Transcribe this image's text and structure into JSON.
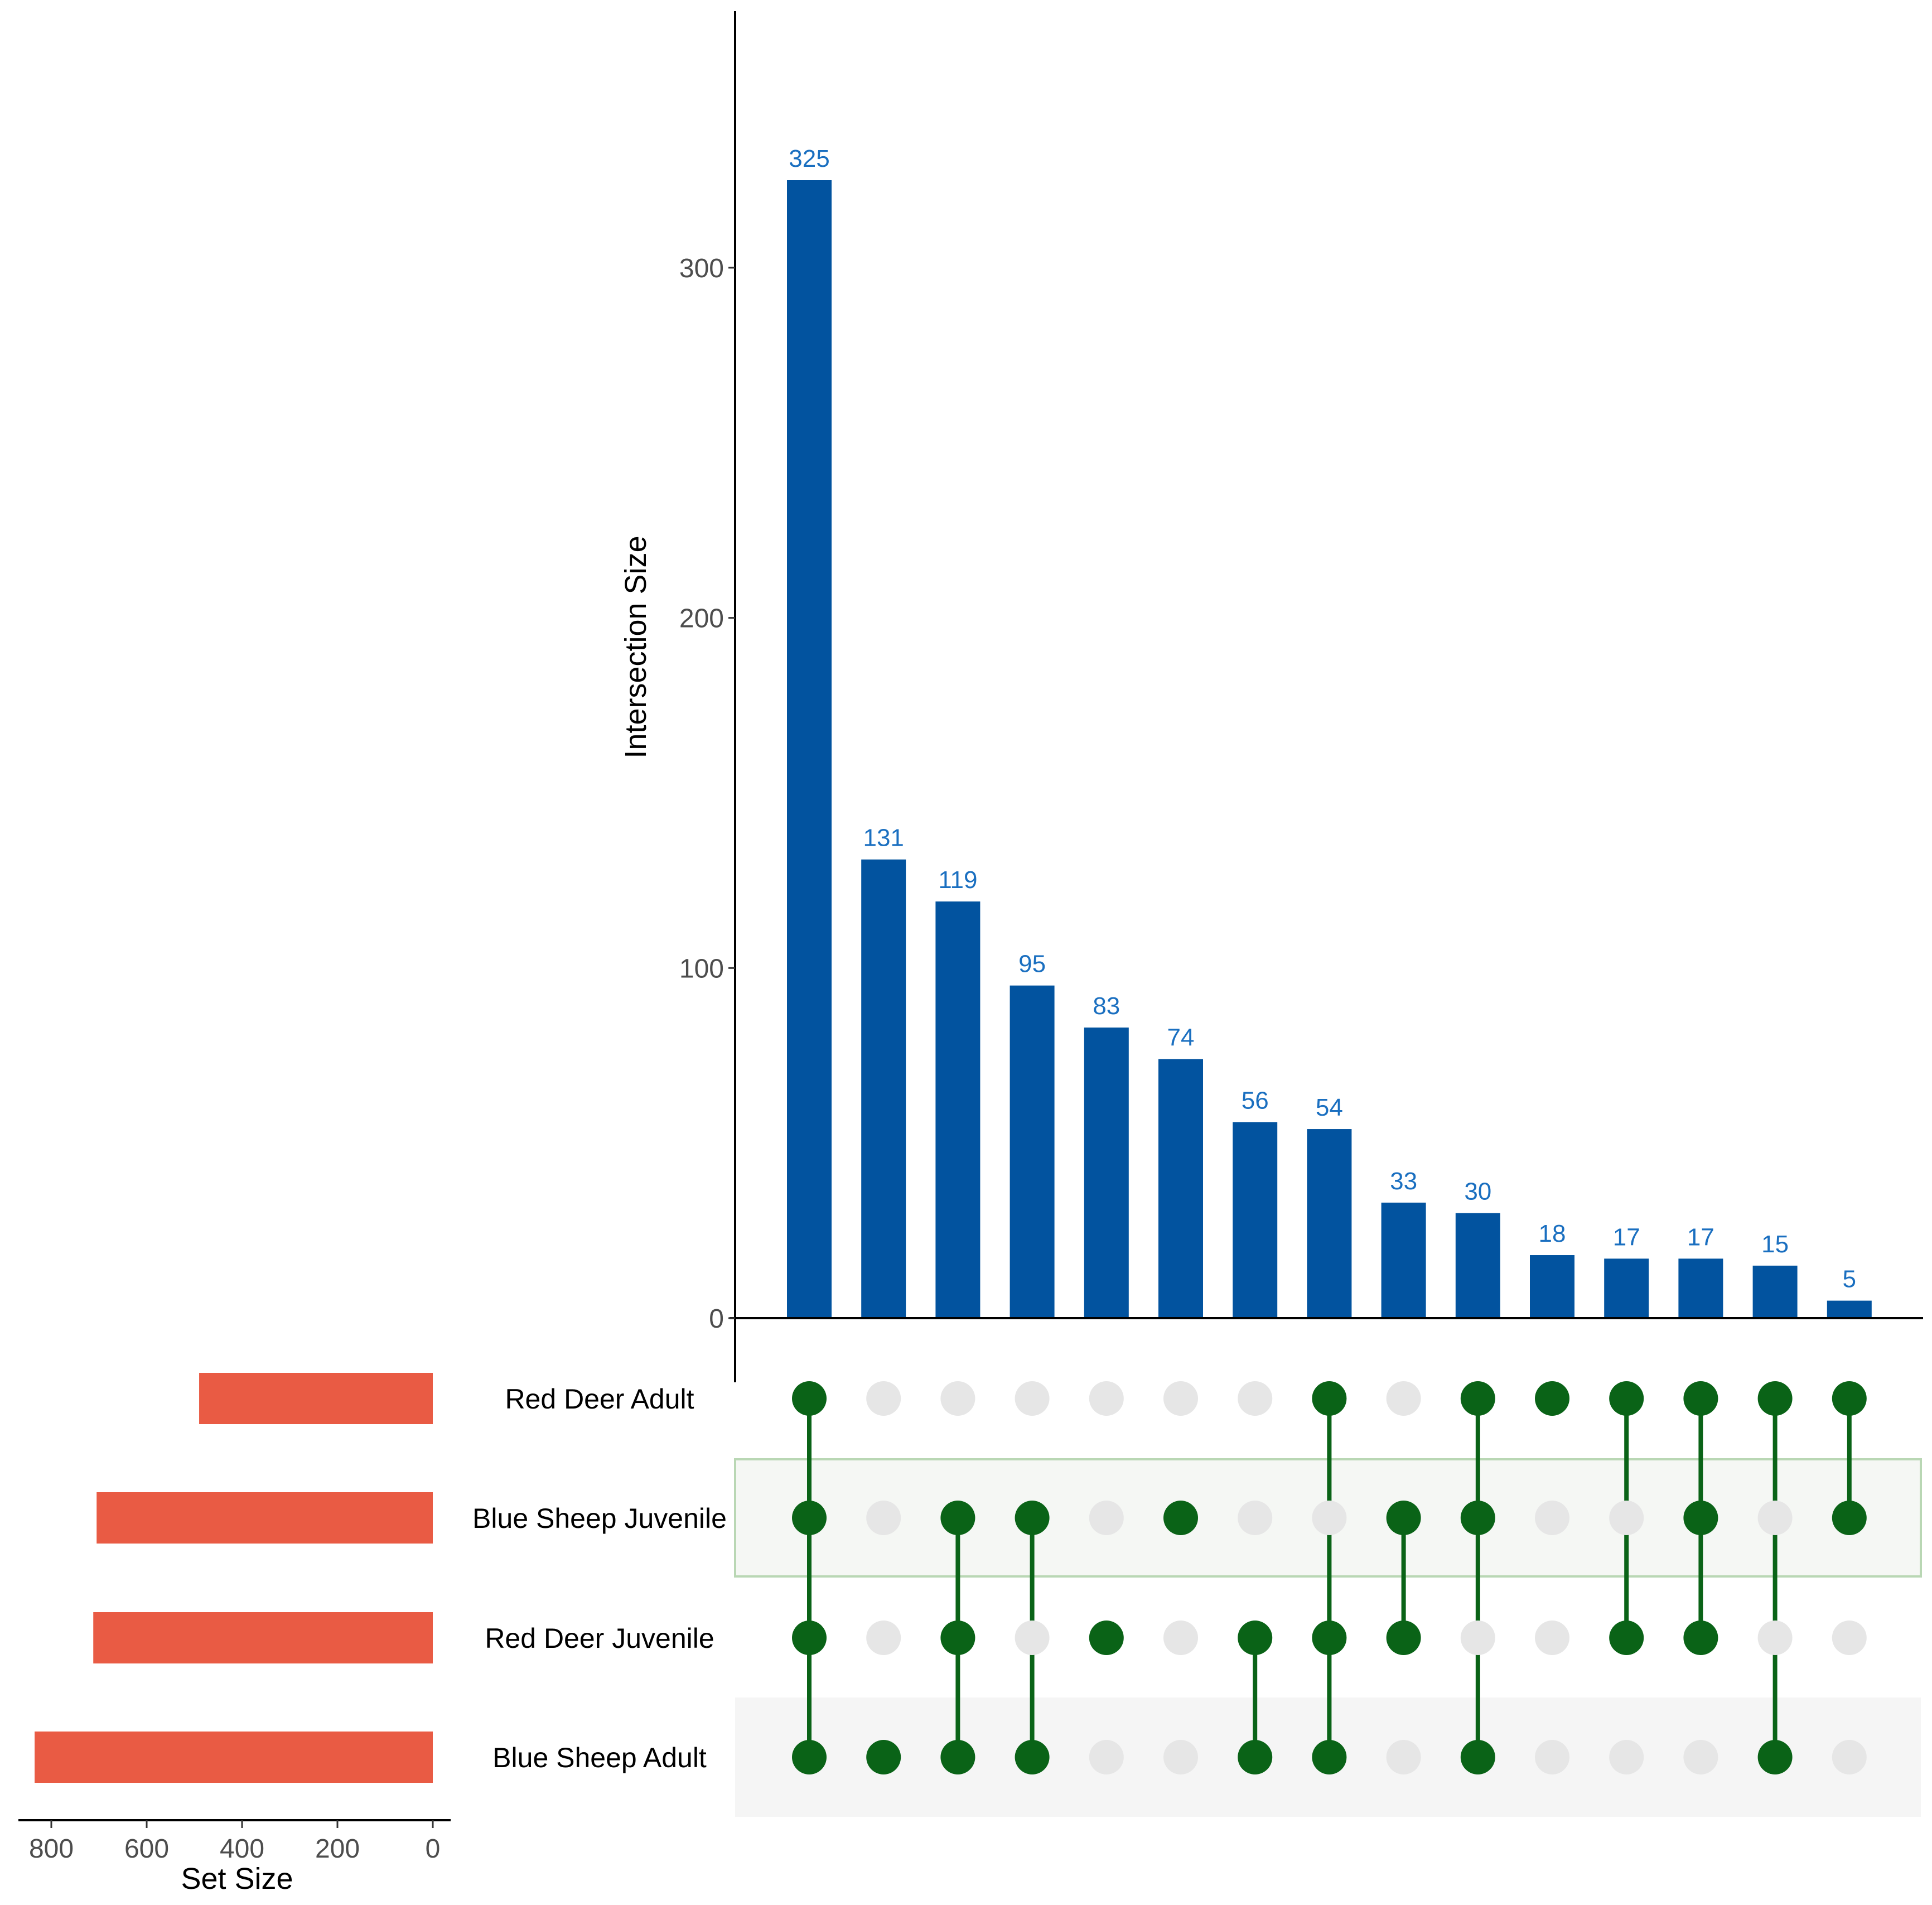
{
  "chart_data": {
    "type": "upset",
    "sets": [
      "Red Deer Adult",
      "Blue Sheep Juvenile",
      "Red Deer Juvenile",
      "Blue Sheep Adult"
    ],
    "set_sizes": [
      490,
      705,
      712,
      835
    ],
    "set_size_axis": {
      "title": "Set Size",
      "ticks": [
        800,
        600,
        400,
        200,
        0
      ],
      "range": [
        0,
        870
      ]
    },
    "intersection_axis": {
      "title": "Intersection Size",
      "ticks": [
        0,
        100,
        200,
        300
      ],
      "range": [
        0,
        375
      ]
    },
    "intersections": [
      {
        "value": 325,
        "label": "325",
        "members": [
          0,
          1,
          2,
          3
        ]
      },
      {
        "value": 131,
        "label": "131",
        "members": [
          3
        ]
      },
      {
        "value": 119,
        "label": "119",
        "members": [
          1,
          2,
          3
        ]
      },
      {
        "value": 95,
        "label": "95",
        "members": [
          1,
          3
        ]
      },
      {
        "value": 83,
        "label": "83",
        "members": [
          2
        ]
      },
      {
        "value": 74,
        "label": "74",
        "members": [
          1
        ]
      },
      {
        "value": 56,
        "label": "56",
        "members": [
          2,
          3
        ]
      },
      {
        "value": 54,
        "label": "54",
        "members": [
          0,
          2,
          3
        ]
      },
      {
        "value": 33,
        "label": "33",
        "members": [
          1,
          2
        ]
      },
      {
        "value": 30,
        "label": "30",
        "members": [
          0,
          1,
          3
        ]
      },
      {
        "value": 18,
        "label": "18",
        "members": [
          0
        ]
      },
      {
        "value": 17,
        "label": "17",
        "members": [
          0,
          2
        ]
      },
      {
        "value": 17,
        "label": "17",
        "members": [
          0,
          1,
          2
        ]
      },
      {
        "value": 15,
        "label": "15",
        "members": [
          0,
          3
        ]
      },
      {
        "value": 5,
        "label": "5",
        "members": [
          0,
          1
        ]
      }
    ],
    "colors": {
      "intersection_bar": "#02539f",
      "bar_label": "#1a6fc0",
      "set_bar": "#e95b44",
      "dot_active": "#0a6317",
      "dot_inactive": "#e6e6e6",
      "highlight_row_fill": "#f5f7f4",
      "highlight_row_stroke": "#b9d7b4",
      "shade_row_fill": "#f5f5f5"
    }
  }
}
